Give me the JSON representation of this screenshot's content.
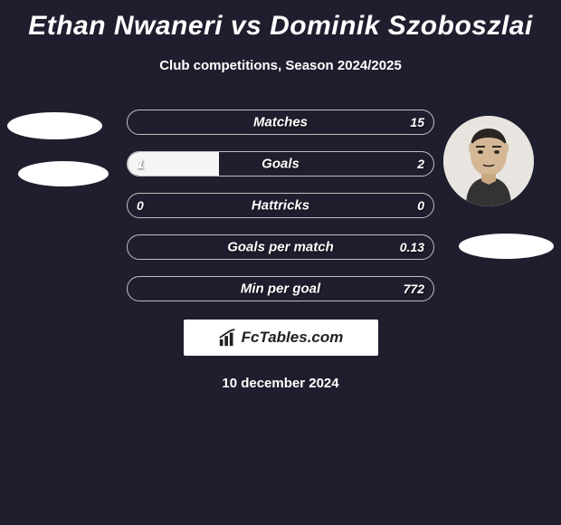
{
  "title": "Ethan Nwaneri vs Dominik Szoboszlai",
  "subtitle": "Club competitions, Season 2024/2025",
  "date": "10 december 2024",
  "logo_text": "FcTables.com",
  "colors": {
    "background": "#1e1e2e",
    "bar_fill": "#f5f5f5",
    "text": "#ffffff"
  },
  "rows": [
    {
      "label": "Matches",
      "left_value": "",
      "right_value": "15",
      "left_pct": 0,
      "right_pct": 0
    },
    {
      "label": "Goals",
      "left_value": "1",
      "right_value": "2",
      "left_pct": 30,
      "right_pct": 0
    },
    {
      "label": "Hattricks",
      "left_value": "0",
      "right_value": "0",
      "left_pct": 0,
      "right_pct": 0
    },
    {
      "label": "Goals per match",
      "left_value": "",
      "right_value": "0.13",
      "left_pct": 0,
      "right_pct": 0
    },
    {
      "label": "Min per goal",
      "left_value": "",
      "right_value": "772",
      "left_pct": 0,
      "right_pct": 0
    }
  ]
}
